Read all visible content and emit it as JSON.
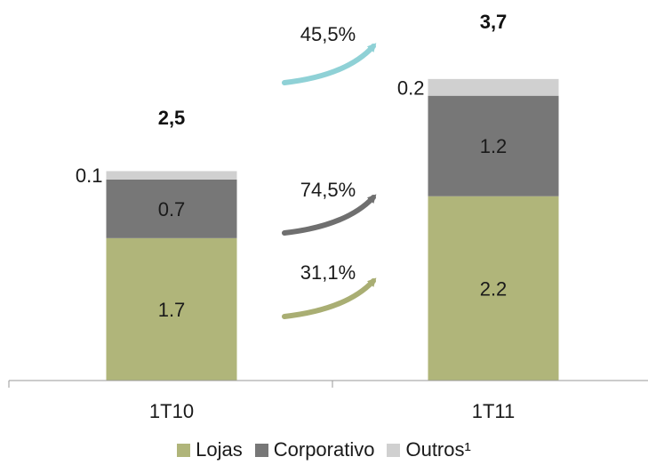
{
  "chart_data": {
    "type": "bar",
    "stacked": true,
    "categories": [
      "1T10",
      "1T11"
    ],
    "series": [
      {
        "name": "Lojas",
        "values": [
          1.7,
          2.2
        ],
        "labels": [
          "1.7",
          "2.2"
        ],
        "color": "#b0b57a"
      },
      {
        "name": "Corporativo",
        "values": [
          0.7,
          1.2
        ],
        "labels": [
          "0.7",
          "1.2"
        ],
        "color": "#777777"
      },
      {
        "name": "Outros¹",
        "values": [
          0.1,
          0.2
        ],
        "labels": [
          "0.1",
          "0.2"
        ],
        "color": "#d0d0d0"
      }
    ],
    "totals": [
      "2,5",
      "3,7"
    ],
    "growth": [
      {
        "label": "45,5%",
        "series": "Outros¹",
        "color": "#8fd1d6"
      },
      {
        "label": "74,5%",
        "series": "Corporativo",
        "color": "#6f6f6f"
      },
      {
        "label": "31,1%",
        "series": "Lojas",
        "color": "#a9ae73"
      }
    ],
    "ylim": [
      0,
      3.8
    ],
    "grid": false,
    "legend_position": "bottom"
  }
}
